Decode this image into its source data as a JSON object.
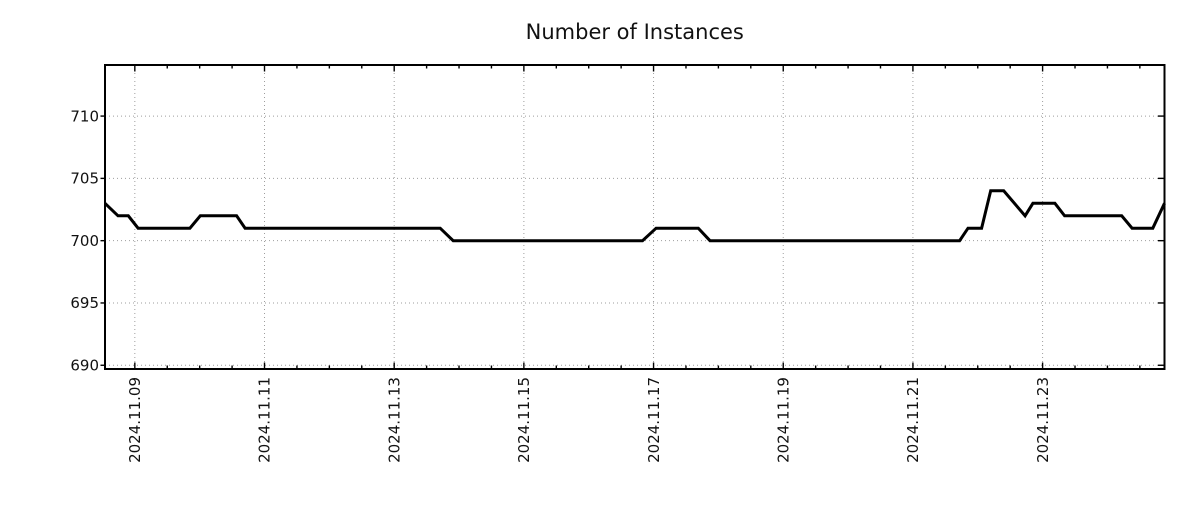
{
  "figure": {
    "background_color": "#ffffff"
  },
  "chart_data": {
    "type": "line",
    "title": "Number of Instances",
    "legend": "none",
    "grid": {
      "visible": true,
      "style": "dotted",
      "color": "#9e9e9e"
    },
    "axes_color": "#000000",
    "x_axis": {
      "unit": "days since 2024-11-09 00:00",
      "xlim_days": [
        -0.46,
        15.88
      ],
      "major_tick_positions_days": [
        0,
        2,
        4,
        6,
        8,
        10,
        12,
        14
      ],
      "major_tick_labels": [
        "2024.11.09",
        "2024.11.11",
        "2024.11.13",
        "2024.11.15",
        "2024.11.17",
        "2024.11.19",
        "2024.11.21",
        "2024.11.23"
      ],
      "minor_tick_step_days": 0.5,
      "label_rotation_deg": 90
    },
    "y_axis": {
      "ylim": [
        689.7,
        714.1
      ],
      "major_tick_positions": [
        690,
        695,
        700,
        705,
        710
      ],
      "major_tick_labels": [
        "690",
        "695",
        "700",
        "705",
        "710"
      ]
    },
    "series": [
      {
        "name": "instances",
        "color": "#000000",
        "line_width": 3,
        "points_day_value": [
          [
            -0.46,
            703
          ],
          [
            -0.26,
            702
          ],
          [
            -0.1,
            702
          ],
          [
            0.05,
            701
          ],
          [
            0.85,
            701
          ],
          [
            1.01,
            702
          ],
          [
            1.57,
            702
          ],
          [
            1.7,
            701
          ],
          [
            4.71,
            701
          ],
          [
            4.91,
            700
          ],
          [
            7.83,
            700
          ],
          [
            8.04,
            701
          ],
          [
            8.69,
            701
          ],
          [
            8.87,
            700
          ],
          [
            12.72,
            700
          ],
          [
            12.85,
            701
          ],
          [
            13.06,
            701
          ],
          [
            13.2,
            704
          ],
          [
            13.4,
            704
          ],
          [
            13.73,
            702
          ],
          [
            13.85,
            703
          ],
          [
            14.19,
            703
          ],
          [
            14.34,
            702
          ],
          [
            15.22,
            702
          ],
          [
            15.38,
            701
          ],
          [
            15.7,
            701
          ],
          [
            15.88,
            703
          ]
        ]
      }
    ]
  }
}
